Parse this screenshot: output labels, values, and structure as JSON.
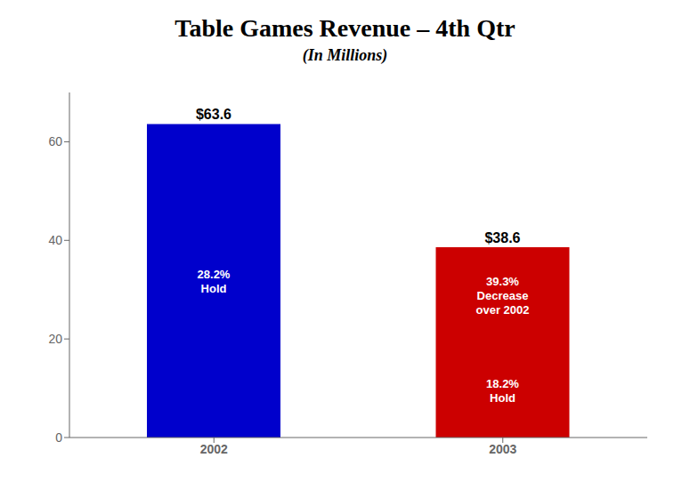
{
  "chart_data": {
    "type": "bar",
    "title": "Table Games Revenue – 4th Qtr",
    "subtitle": "(In Millions)",
    "categories": [
      "2002",
      "2003"
    ],
    "values": [
      63.6,
      38.6
    ],
    "colors": [
      "#0000CC",
      "#CC0000"
    ],
    "value_labels": [
      "$63.6",
      "$38.6"
    ],
    "data_labels": true,
    "annotations": [
      {
        "category": "2002",
        "text": "28.2%\nHold"
      },
      {
        "category": "2003",
        "text": "39.3%\nDecrease\nover 2002"
      },
      {
        "category": "2003",
        "text": "18.2%\nHold"
      }
    ],
    "ylim": [
      0,
      70
    ],
    "yticks": [
      0,
      20,
      40,
      60
    ],
    "grid": false
  }
}
